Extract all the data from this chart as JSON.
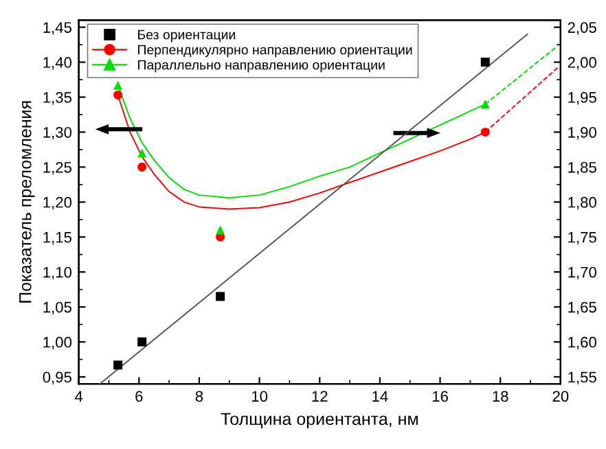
{
  "chart_data": {
    "type": "scatter",
    "xlabel": "Толщина ориентанта, нм",
    "ylabel": "Показатель преломления",
    "xlim": [
      4,
      20
    ],
    "xticks": [
      4,
      6,
      8,
      10,
      12,
      14,
      16,
      18,
      20
    ],
    "ylim": [
      0.94,
      1.46
    ],
    "yticks": [
      {
        "value": 0.95,
        "label": "0,95"
      },
      {
        "value": 1.0,
        "label": "1,00"
      },
      {
        "value": 1.05,
        "label": "1,05"
      },
      {
        "value": 1.1,
        "label": "1,10"
      },
      {
        "value": 1.15,
        "label": "1,15"
      },
      {
        "value": 1.2,
        "label": "1,20"
      },
      {
        "value": 1.25,
        "label": "1,25"
      },
      {
        "value": 1.3,
        "label": "1,30"
      },
      {
        "value": 1.35,
        "label": "1,35"
      },
      {
        "value": 1.4,
        "label": "1,40"
      },
      {
        "value": 1.45,
        "label": "1,45"
      }
    ],
    "y2lim": [
      1.54,
      2.06
    ],
    "y2ticks": [
      {
        "value": 1.55,
        "label": "1,55"
      },
      {
        "value": 1.6,
        "label": "1,60"
      },
      {
        "value": 1.65,
        "label": "1,65"
      },
      {
        "value": 1.7,
        "label": "1,70"
      },
      {
        "value": 1.75,
        "label": "1,75"
      },
      {
        "value": 1.8,
        "label": "1,80"
      },
      {
        "value": 1.85,
        "label": "1,85"
      },
      {
        "value": 1.9,
        "label": "1,90"
      },
      {
        "value": 1.95,
        "label": "1,95"
      },
      {
        "value": 2.0,
        "label": "2,00"
      },
      {
        "value": 2.05,
        "label": "2,05"
      }
    ],
    "grid": false,
    "legend": "top left",
    "series": [
      {
        "name": "Без ориентации",
        "axis": "y2",
        "marker": "square",
        "color": "#000000",
        "x": [
          5.3,
          6.1,
          8.7,
          17.5
        ],
        "values": [
          1.567,
          1.6,
          1.665,
          2.0
        ]
      },
      {
        "name": "Перпендикулярно направлению ориентации",
        "marker": "circle",
        "color": "#ff0000",
        "x": [
          5.3,
          6.1,
          8.7,
          17.5
        ],
        "values": [
          1.353,
          1.25,
          1.15,
          1.3
        ]
      },
      {
        "name": "Параллельно направлению ориентации",
        "marker": "triangle",
        "color": "#00dd00",
        "x": [
          5.3,
          6.1,
          8.7,
          17.5
        ],
        "values": [
          1.367,
          1.27,
          1.16,
          1.34
        ]
      },
      {
        "type": "line",
        "axis": "y2",
        "color": "#555555",
        "line_style": "solid",
        "x": [
          4.7,
          18.9
        ],
        "values": [
          1.54,
          2.04
        ]
      },
      {
        "type": "line",
        "color": "#ff0000",
        "line_style": "solid",
        "x": [
          5.3,
          5.7,
          6.1,
          6.5,
          7,
          7.5,
          8,
          9,
          10,
          11,
          12,
          13,
          14,
          15,
          16,
          17,
          17.5
        ],
        "values": [
          1.353,
          1.3,
          1.265,
          1.24,
          1.215,
          1.2,
          1.193,
          1.19,
          1.192,
          1.2,
          1.213,
          1.228,
          1.243,
          1.258,
          1.273,
          1.29,
          1.3
        ]
      },
      {
        "type": "line",
        "color": "#00dd00",
        "line_style": "solid",
        "x": [
          5.3,
          5.7,
          6.1,
          6.5,
          7,
          7.5,
          8,
          9,
          10,
          11,
          12,
          13,
          14,
          15,
          16,
          17,
          17.5
        ],
        "values": [
          1.367,
          1.32,
          1.285,
          1.26,
          1.235,
          1.218,
          1.21,
          1.206,
          1.21,
          1.222,
          1.237,
          1.25,
          1.27,
          1.29,
          1.31,
          1.33,
          1.34
        ]
      },
      {
        "type": "line",
        "color": "#ff0000",
        "line_style": "dashed",
        "x": [
          17.5,
          19.9
        ],
        "values": [
          1.3,
          1.392
        ]
      },
      {
        "type": "line",
        "color": "#00dd00",
        "line_style": "dashed",
        "x": [
          17.5,
          19.9
        ],
        "values": [
          1.34,
          1.423
        ]
      }
    ]
  }
}
